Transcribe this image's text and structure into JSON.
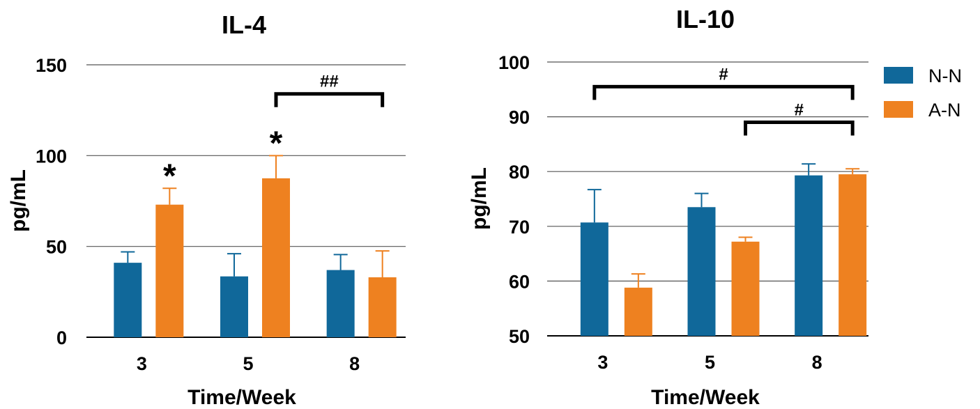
{
  "colors": {
    "N-N": "#10689a",
    "A-N": "#ee8120",
    "grid": "#555555",
    "text": "#000000"
  },
  "legend": {
    "items": [
      "N-N",
      "A-N"
    ],
    "placement": "right"
  },
  "chart_data": [
    {
      "type": "bar",
      "title": "IL-4",
      "xlabel": "Time/Week",
      "ylabel": "pg/mL",
      "categories": [
        "3",
        "5",
        "8"
      ],
      "ylim": [
        0,
        150
      ],
      "yticks": [
        0,
        50,
        100,
        150
      ],
      "grid": true,
      "series": [
        {
          "name": "N-N",
          "values": [
            41,
            33.5,
            37
          ],
          "errors": [
            6,
            12.5,
            8.5
          ]
        },
        {
          "name": "A-N",
          "values": [
            73,
            87.5,
            33
          ],
          "errors": [
            9,
            12.5,
            14.5
          ]
        }
      ],
      "annotations": [
        {
          "type": "marker",
          "text": "*",
          "category": 0,
          "series": 1
        },
        {
          "type": "marker",
          "text": "*",
          "category": 1,
          "series": 1
        },
        {
          "type": "bracket",
          "text": "##",
          "from": [
            1,
            1
          ],
          "to": [
            2,
            1
          ],
          "y": 134
        }
      ]
    },
    {
      "type": "bar",
      "title": "IL-10",
      "xlabel": "Time/Week",
      "ylabel": "pg/mL",
      "categories": [
        "3",
        "5",
        "8"
      ],
      "ylim": [
        50,
        100
      ],
      "yticks": [
        50,
        60,
        70,
        80,
        90,
        100
      ],
      "grid": true,
      "series": [
        {
          "name": "N-N",
          "values": [
            70.7,
            73.5,
            79.3
          ],
          "errors": [
            6,
            2.5,
            2.1
          ]
        },
        {
          "name": "A-N",
          "values": [
            58.8,
            67.2,
            79.5
          ],
          "errors": [
            2.5,
            0.8,
            1
          ]
        }
      ],
      "annotations": [
        {
          "type": "bracket",
          "text": "#",
          "from": [
            0,
            0
          ],
          "to": [
            2,
            1
          ],
          "y": 95.5
        },
        {
          "type": "bracket",
          "text": "#",
          "from": [
            1,
            1
          ],
          "to": [
            2,
            1
          ],
          "y": 89
        }
      ]
    }
  ]
}
